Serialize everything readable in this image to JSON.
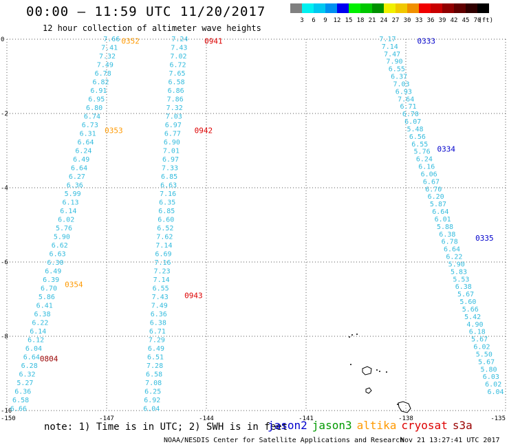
{
  "title": "00:00 – 11:59 UTC 11/20/2017",
  "subtitle": "12 hour collection of altimeter wave heights",
  "colorbar": {
    "unit_label": "(ft)",
    "ticks": [
      "3",
      "6",
      "9",
      "12",
      "15",
      "18",
      "21",
      "24",
      "27",
      "30",
      "33",
      "36",
      "39",
      "42",
      "45",
      "70"
    ],
    "colors": [
      "#808080",
      "#00f0f0",
      "#00c8f0",
      "#0090f0",
      "#0000f0",
      "#00f000",
      "#00c800",
      "#009000",
      "#f0f000",
      "#f0c800",
      "#f09000",
      "#f00000",
      "#c80000",
      "#900000",
      "#600000",
      "#300000",
      "#000000"
    ]
  },
  "note": "note: 1) Time is in UTC; 2) SWH is in feet",
  "legend": [
    {
      "label": "jason2",
      "color": "#0000cc"
    },
    {
      "label": "jason3",
      "color": "#009900"
    },
    {
      "label": "altika",
      "color": "#ff9900"
    },
    {
      "label": "cryosat",
      "color": "#dd0000"
    },
    {
      "label": "s3a",
      "color": "#990000"
    }
  ],
  "footer": "NOAA/NESDIS Center for Satellite Applications and Research",
  "footer_time": "Nov 21 13:27:41 UTC 2017",
  "chart_data": {
    "type": "scatter",
    "xlim": [
      -150,
      -135
    ],
    "ylim": [
      -10,
      0
    ],
    "x_ticks": [
      -150,
      -147,
      -144,
      -141,
      -138,
      -135
    ],
    "x_tick_labels": [
      "-150",
      "-147",
      "-144",
      "-141",
      "-138",
      "-135"
    ],
    "y_ticks": [
      0,
      -2,
      -4,
      -6,
      -8,
      -10
    ],
    "y_tick_labels": [
      "0",
      "-2",
      "-4",
      "-6",
      "-8",
      "-10"
    ],
    "point_color": "#33bbdd",
    "tracks": [
      {
        "name": "altika",
        "start": [
          -146.6,
          0.0
        ],
        "end": [
          -149.4,
          -9.95
        ],
        "values": [
          "7.66",
          "7.41",
          "7.32",
          "7.49",
          "6.78",
          "6.82",
          "6.91",
          "6.95",
          "6.80",
          "6.74",
          "6.73",
          "6.31",
          "6.64",
          "6.24",
          "6.49",
          "6.64",
          "6.27",
          "6.36",
          "5.99",
          "6.13",
          "6.14",
          "6.02",
          "5.76",
          "5.90",
          "6.62",
          "6.63",
          "6.30",
          "6.49",
          "6.39",
          "6.70",
          "5.86",
          "6.41",
          "6.38",
          "6.22",
          "6.14",
          "6.12",
          "6.04",
          "6.64",
          "6.28",
          "6.32",
          "5.27",
          "6.36",
          "6.58",
          "6.66"
        ]
      },
      {
        "name": "cryosat",
        "start": [
          -144.55,
          0.0
        ],
        "end": [
          -145.4,
          -9.95
        ],
        "values": [
          "7.24",
          "7.43",
          "7.02",
          "6.72",
          "7.65",
          "6.58",
          "6.86",
          "7.86",
          "7.32",
          "7.03",
          "6.97",
          "6.77",
          "6.90",
          "7.01",
          "6.97",
          "7.33",
          "6.85",
          "6.63",
          "7.16",
          "6.35",
          "6.85",
          "6.60",
          "6.52",
          "7.62",
          "7.14",
          "6.69",
          "7.16",
          "7.23",
          "7.14",
          "6.55",
          "7.43",
          "7.49",
          "6.36",
          "6.38",
          "6.71",
          "7.29",
          "6.49",
          "6.51",
          "7.28",
          "6.58",
          "7.08",
          "6.25",
          "6.92",
          "6.04"
        ]
      },
      {
        "name": "jason2",
        "start": [
          -138.3,
          0.0
        ],
        "end": [
          -135.05,
          -9.5
        ],
        "values": [
          "7.17",
          "7.14",
          "7.47",
          "7.90",
          "6.55",
          "6.37",
          "7.03",
          "6.93",
          "7.64",
          "6.71",
          "6.70",
          "6.07",
          "5.48",
          "6.56",
          "6.55",
          "5.76",
          "6.24",
          "6.16",
          "6.06",
          "6.67",
          "6.70",
          "6.20",
          "5.87",
          "6.64",
          "6.01",
          "5.88",
          "6.38",
          "6.78",
          "6.64",
          "6.22",
          "5.90",
          "5.83",
          "5.53",
          "6.38",
          "5.67",
          "5.60",
          "5.66",
          "5.42",
          "4.90",
          "6.18",
          "5.67",
          "6.02",
          "5.50",
          "5.67",
          "5.80",
          "6.03",
          "6.02",
          "6.04"
        ]
      }
    ],
    "time_labels": [
      {
        "text": "0352",
        "x": -146.6,
        "y": -0.05,
        "color": "#ff9900"
      },
      {
        "text": "0353",
        "x": -147.1,
        "y": -2.45,
        "color": "#ff9900"
      },
      {
        "text": "0354",
        "x": -148.3,
        "y": -6.6,
        "color": "#ff9900"
      },
      {
        "text": "0804",
        "x": -149.05,
        "y": -8.6,
        "color": "#990000"
      },
      {
        "text": "0941",
        "x": -144.1,
        "y": -0.05,
        "color": "#dd0000"
      },
      {
        "text": "0942",
        "x": -144.4,
        "y": -2.45,
        "color": "#dd0000"
      },
      {
        "text": "0943",
        "x": -144.7,
        "y": -6.9,
        "color": "#dd0000"
      },
      {
        "text": "0333",
        "x": -137.7,
        "y": -0.05,
        "color": "#0000cc"
      },
      {
        "text": "0334",
        "x": -137.1,
        "y": -2.95,
        "color": "#0000cc"
      },
      {
        "text": "0335",
        "x": -135.95,
        "y": -5.35,
        "color": "#0000cc"
      }
    ]
  }
}
